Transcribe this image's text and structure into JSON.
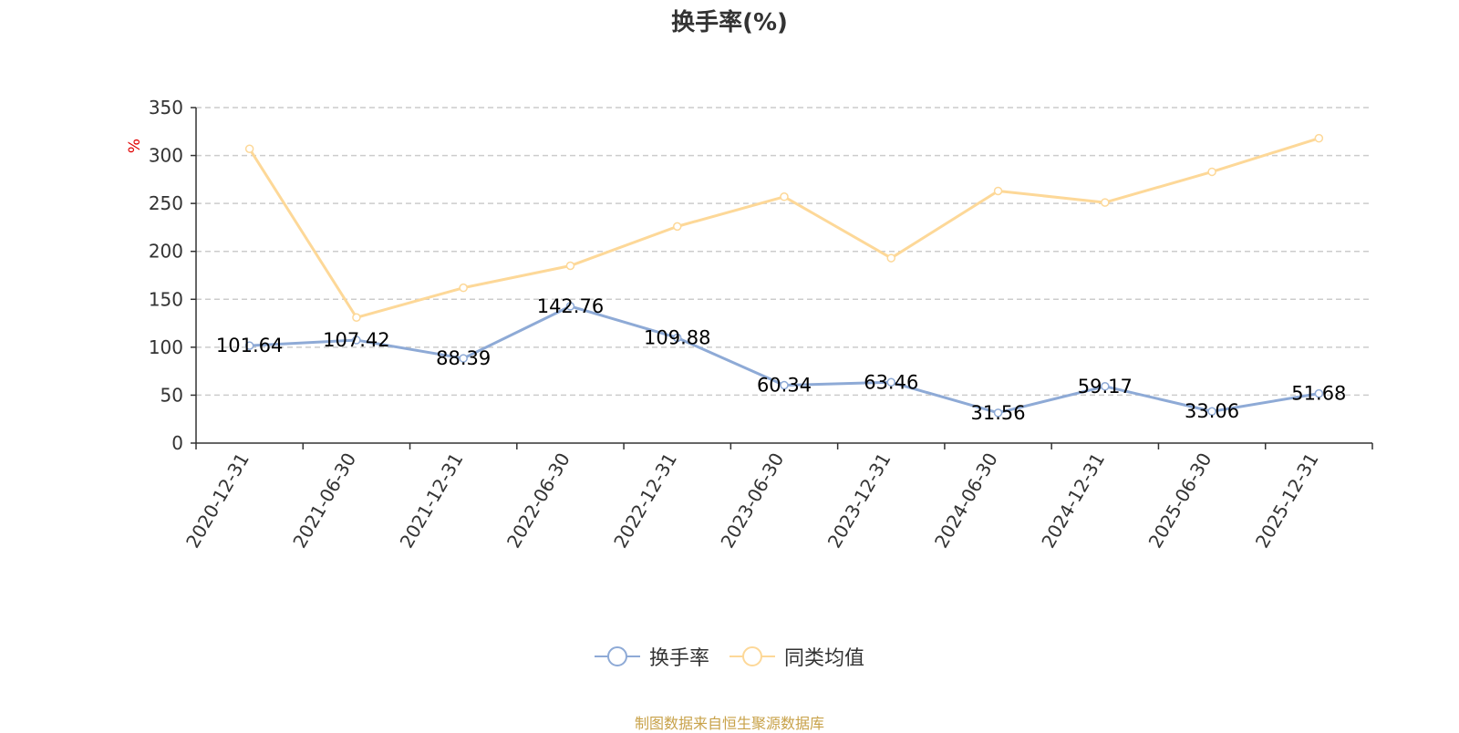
{
  "colors": {
    "series_1": "#8eaad6",
    "series_2": "#fdd898",
    "grid": "#cccccc",
    "axis": "#333333",
    "unit": "#e00000",
    "source": "#c8a24a"
  },
  "chart_data": {
    "type": "line",
    "title": "换手率(%)",
    "ylabel": "%",
    "ylim": [
      0,
      350
    ],
    "yticks": [
      0,
      50,
      100,
      150,
      200,
      250,
      300,
      350
    ],
    "grid": true,
    "legend_position": "bottom",
    "categories": [
      "2020-12-31",
      "2021-06-30",
      "2021-12-31",
      "2022-06-30",
      "2022-12-31",
      "2023-06-30",
      "2023-12-31",
      "2024-06-30",
      "2024-12-31",
      "2025-06-30",
      "2025-12-31"
    ],
    "series": [
      {
        "name": "换手率",
        "values": [
          101.64,
          107.42,
          88.39,
          142.76,
          109.88,
          60.34,
          63.46,
          31.56,
          59.17,
          33.06,
          51.68
        ],
        "labels": [
          "101.64",
          "107.42",
          "88.39",
          "142.76",
          "109.88",
          "60.34",
          "63.46",
          "31.56",
          "59.17",
          "33.06",
          "51.68"
        ]
      },
      {
        "name": "同类均值",
        "values": [
          307,
          131,
          162,
          185,
          226,
          257,
          193,
          263,
          251,
          283,
          318
        ]
      }
    ]
  },
  "source_text": "制图数据来自恒生聚源数据库"
}
